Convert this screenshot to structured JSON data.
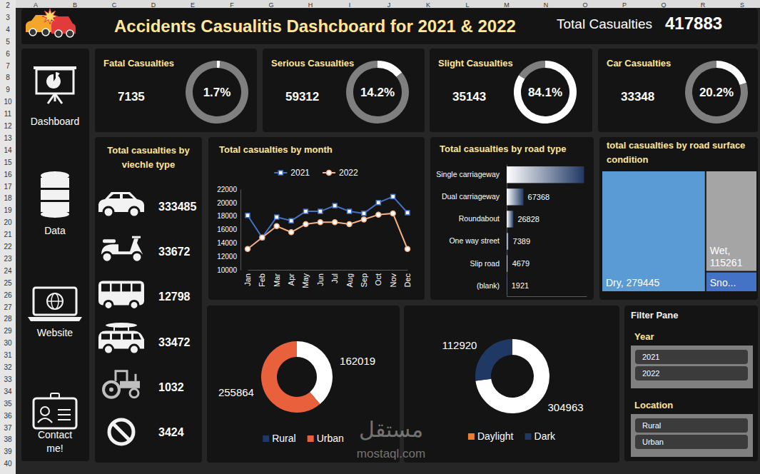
{
  "sheet": {
    "columns": [
      "A",
      "B",
      "C",
      "D",
      "E",
      "F",
      "G",
      "H",
      "I",
      "J",
      "K",
      "L",
      "M",
      "N",
      "O",
      "P",
      "Q",
      "R",
      "S"
    ],
    "rows": [
      2,
      3,
      4,
      5,
      6,
      7,
      8,
      9,
      10,
      11,
      12,
      13,
      14,
      15,
      16,
      17,
      18,
      19,
      20,
      21,
      22,
      23,
      24,
      25,
      26,
      27,
      28,
      29,
      30,
      31,
      32,
      33,
      34,
      35,
      36,
      37,
      38,
      39,
      40
    ]
  },
  "header": {
    "title": "Accidents Casualitis Dashcboard for 2021 & 2022",
    "total_label": "Total Casualties",
    "total_value": 417883
  },
  "nav": [
    "Dashboard",
    "Data",
    "Website",
    "Contact me!"
  ],
  "chart_data": [
    {
      "type": "gauge",
      "title": "Fatal Casualties",
      "count": 7135,
      "values": [
        1.7
      ],
      "value_labels": [
        "1.7%"
      ],
      "colors": [
        "#ffffff",
        "#7f7f7f"
      ]
    },
    {
      "type": "gauge",
      "title": "Serious Casualties",
      "count": 59312,
      "values": [
        14.2
      ],
      "value_labels": [
        "14.2%"
      ],
      "colors": [
        "#ffffff",
        "#7f7f7f"
      ]
    },
    {
      "type": "gauge",
      "title": "Slight Casualties",
      "count": 35143,
      "values": [
        84.1
      ],
      "value_labels": [
        "84.1%"
      ],
      "colors": [
        "#ffffff",
        "#7f7f7f"
      ]
    },
    {
      "type": "gauge",
      "title": "Car Casualties",
      "count": 33348,
      "values": [
        20.2
      ],
      "value_labels": [
        "20.2%"
      ],
      "colors": [
        "#ffffff",
        "#7f7f7f"
      ]
    },
    {
      "type": "icon_list",
      "title": "Total casualties by viechle type",
      "categories": [
        null,
        null,
        null,
        null,
        null,
        null
      ],
      "values": [
        333485,
        33672,
        12798,
        33472,
        1032,
        3424
      ],
      "data_labels": true
    },
    {
      "type": "line",
      "title": "Total casualties by month",
      "categories": [
        "Jan",
        "Feb",
        "Mar",
        "Apr",
        "May",
        "Jun",
        "Jul",
        "Aug",
        "Sep",
        "Oct",
        "Nov",
        "Dec"
      ],
      "series": [
        {
          "name": "2021",
          "color": "#4472c4",
          "marker": "square",
          "values": [
            18100,
            14800,
            17850,
            17300,
            18700,
            18700,
            19550,
            18700,
            18400,
            20000,
            20900,
            18500
          ]
        },
        {
          "name": "2022",
          "color": "#f4b183",
          "marker": "circle",
          "values": [
            13100,
            14800,
            16500,
            15600,
            16800,
            17100,
            17100,
            16800,
            17500,
            18200,
            18400,
            13100
          ]
        }
      ],
      "ylim": [
        10000,
        22000
      ],
      "yticks": [
        10000,
        12000,
        14000,
        16000,
        18000,
        20000,
        22000
      ],
      "grid": false,
      "legend": "top"
    },
    {
      "type": "bar",
      "orientation": "horizontal",
      "title": "Total casualties by road type",
      "categories": [
        "Single carriageway",
        "Dual carriageway",
        "Roundabout",
        "One way street",
        "Slip road",
        "(blank)"
      ],
      "values": [
        309698,
        67368,
        26828,
        7389,
        4679,
        1921
      ],
      "value_labels": [
        null,
        "67368",
        "26828",
        "7389",
        "4679",
        "1921"
      ],
      "data_labels": true,
      "xlim": [
        0,
        320000
      ],
      "xticks": [],
      "tick_labels": "y",
      "color": "#1f3864"
    },
    {
      "type": "treemap",
      "title": "total casualties by road surface condition",
      "values": [
        279445,
        115261,
        23177
      ],
      "value_labels": [
        "Dry, 279445",
        "Wet, 115261",
        "Sno..."
      ],
      "colors": [
        "#5b9bd5",
        "#a5a5a5",
        "#4472c4"
      ],
      "data_labels": true
    },
    {
      "type": "doughnut",
      "categories": [
        "Rural",
        "Urban"
      ],
      "values": [
        162019,
        255864
      ],
      "colors": [
        "#1f3864",
        "#e8613c"
      ],
      "data_labels": true,
      "legend": "bottom"
    },
    {
      "type": "doughnut",
      "categories": [
        "Daylight",
        "Dark"
      ],
      "values": [
        304963,
        112920
      ],
      "colors": [
        "#ed7d31",
        "#1f3864"
      ],
      "data_labels": true,
      "legend": "bottom"
    }
  ],
  "filters": {
    "title": "Filter Pane",
    "groups": [
      {
        "title": "Year",
        "items": [
          "2021",
          "2022"
        ]
      },
      {
        "title": "Location",
        "items": [
          "Rural",
          "Urban"
        ]
      }
    ]
  },
  "watermark": [
    "مستقل",
    "mostaql.com"
  ]
}
